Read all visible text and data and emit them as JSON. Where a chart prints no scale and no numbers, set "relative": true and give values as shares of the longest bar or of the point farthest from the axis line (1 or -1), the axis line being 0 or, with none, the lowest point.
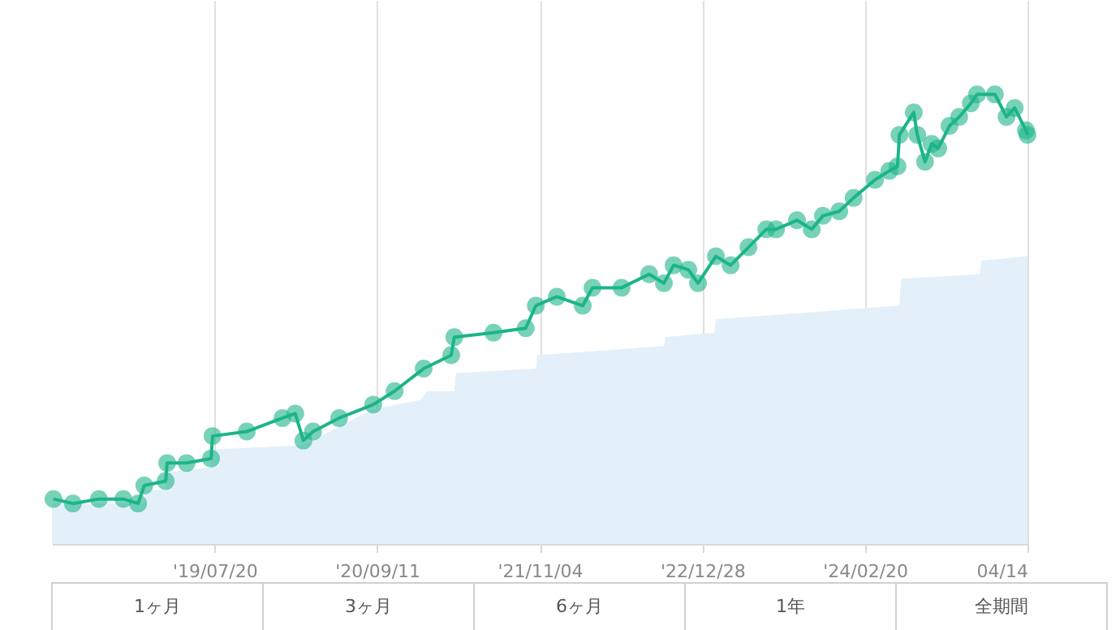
{
  "chart_data": {
    "type": "line",
    "relative": true,
    "grid": "x",
    "line_style": "solid",
    "xlim": [
      "2018-05-27",
      "2025-04-14"
    ],
    "xticks": [
      {
        "value": "2019-07-20",
        "label": "'19/07/20"
      },
      {
        "value": "2020-09-11",
        "label": "'20/09/11"
      },
      {
        "value": "2021-11-04",
        "label": "'21/11/04"
      },
      {
        "value": "2022-12-28",
        "label": "'22/12/28"
      },
      {
        "value": "2024-02-20",
        "label": "'24/02/20"
      },
      {
        "value": "2025-04-14",
        "label": "04/14"
      }
    ],
    "series": [
      {
        "color": "#1cb489",
        "marker": "circle",
        "x": [
          "2018-05-31",
          "2018-07-20",
          "2018-09-25",
          "2018-11-27",
          "2019-01-04",
          "2019-01-20",
          "2019-03-16",
          "2019-03-20",
          "2019-05-09",
          "2019-07-11",
          "2019-07-15",
          "2019-10-11",
          "2020-01-11",
          "2020-02-13",
          "2020-03-05",
          "2020-03-30",
          "2020-06-05",
          "2020-09-01",
          "2020-10-26",
          "2021-01-09",
          "2021-03-21",
          "2021-03-29",
          "2021-07-08",
          "2021-09-29",
          "2021-10-25",
          "2021-12-18",
          "2022-02-23",
          "2022-03-20",
          "2022-06-03",
          "2022-08-13",
          "2022-09-20",
          "2022-10-15",
          "2022-11-22",
          "2022-12-17",
          "2023-02-01",
          "2023-03-11",
          "2023-04-26",
          "2023-06-11",
          "2023-07-06",
          "2023-08-29",
          "2023-10-06",
          "2023-11-04",
          "2023-12-16",
          "2024-01-22",
          "2024-03-17",
          "2024-04-23",
          "2024-05-14",
          "2024-05-19",
          "2024-06-25",
          "2024-07-04",
          "2024-07-24",
          "2024-08-10",
          "2024-08-27",
          "2024-09-25",
          "2024-10-20",
          "2024-11-19",
          "2024-12-05",
          "2025-01-20",
          "2025-02-19",
          "2025-03-12",
          "2025-04-10",
          "2025-04-14"
        ],
        "values": [
          0.1,
          0.09,
          0.1,
          0.1,
          0.09,
          0.13,
          0.14,
          0.18,
          0.18,
          0.19,
          0.24,
          0.25,
          0.28,
          0.29,
          0.23,
          0.25,
          0.28,
          0.31,
          0.34,
          0.39,
          0.42,
          0.46,
          0.47,
          0.48,
          0.53,
          0.55,
          0.53,
          0.57,
          0.57,
          0.6,
          0.58,
          0.62,
          0.61,
          0.58,
          0.64,
          0.62,
          0.66,
          0.7,
          0.7,
          0.72,
          0.7,
          0.73,
          0.74,
          0.77,
          0.81,
          0.83,
          0.84,
          0.91,
          0.96,
          0.91,
          0.85,
          0.89,
          0.88,
          0.93,
          0.95,
          0.98,
          1.0,
          1.0,
          0.95,
          0.97,
          0.92,
          0.91
        ]
      },
      {
        "type": "area",
        "color": "#e3f0f9",
        "x": [
          "2018-05-27",
          "2019-01-20",
          "2019-01-21",
          "2019-03-16",
          "2019-03-20",
          "2019-07-11",
          "2019-07-15",
          "2020-03-05",
          "2020-09-01",
          "2020-12-31",
          "2021-01-17",
          "2021-03-29",
          "2021-04-02",
          "2021-10-25",
          "2021-10-29",
          "2022-09-20",
          "2022-09-24",
          "2023-01-28",
          "2023-02-01",
          "2024-05-19",
          "2024-05-23",
          "2024-12-12",
          "2024-12-16",
          "2025-04-14"
        ],
        "values": [
          0.09,
          0.09,
          0.12,
          0.12,
          0.16,
          0.17,
          0.21,
          0.22,
          0.3,
          0.32,
          0.34,
          0.34,
          0.38,
          0.39,
          0.42,
          0.44,
          0.46,
          0.47,
          0.5,
          0.53,
          0.59,
          0.6,
          0.63,
          0.64
        ]
      }
    ],
    "annotations": [
      "1ヶ月",
      "3ヶ月",
      "6ヶ月",
      "1年",
      "全期間"
    ]
  }
}
